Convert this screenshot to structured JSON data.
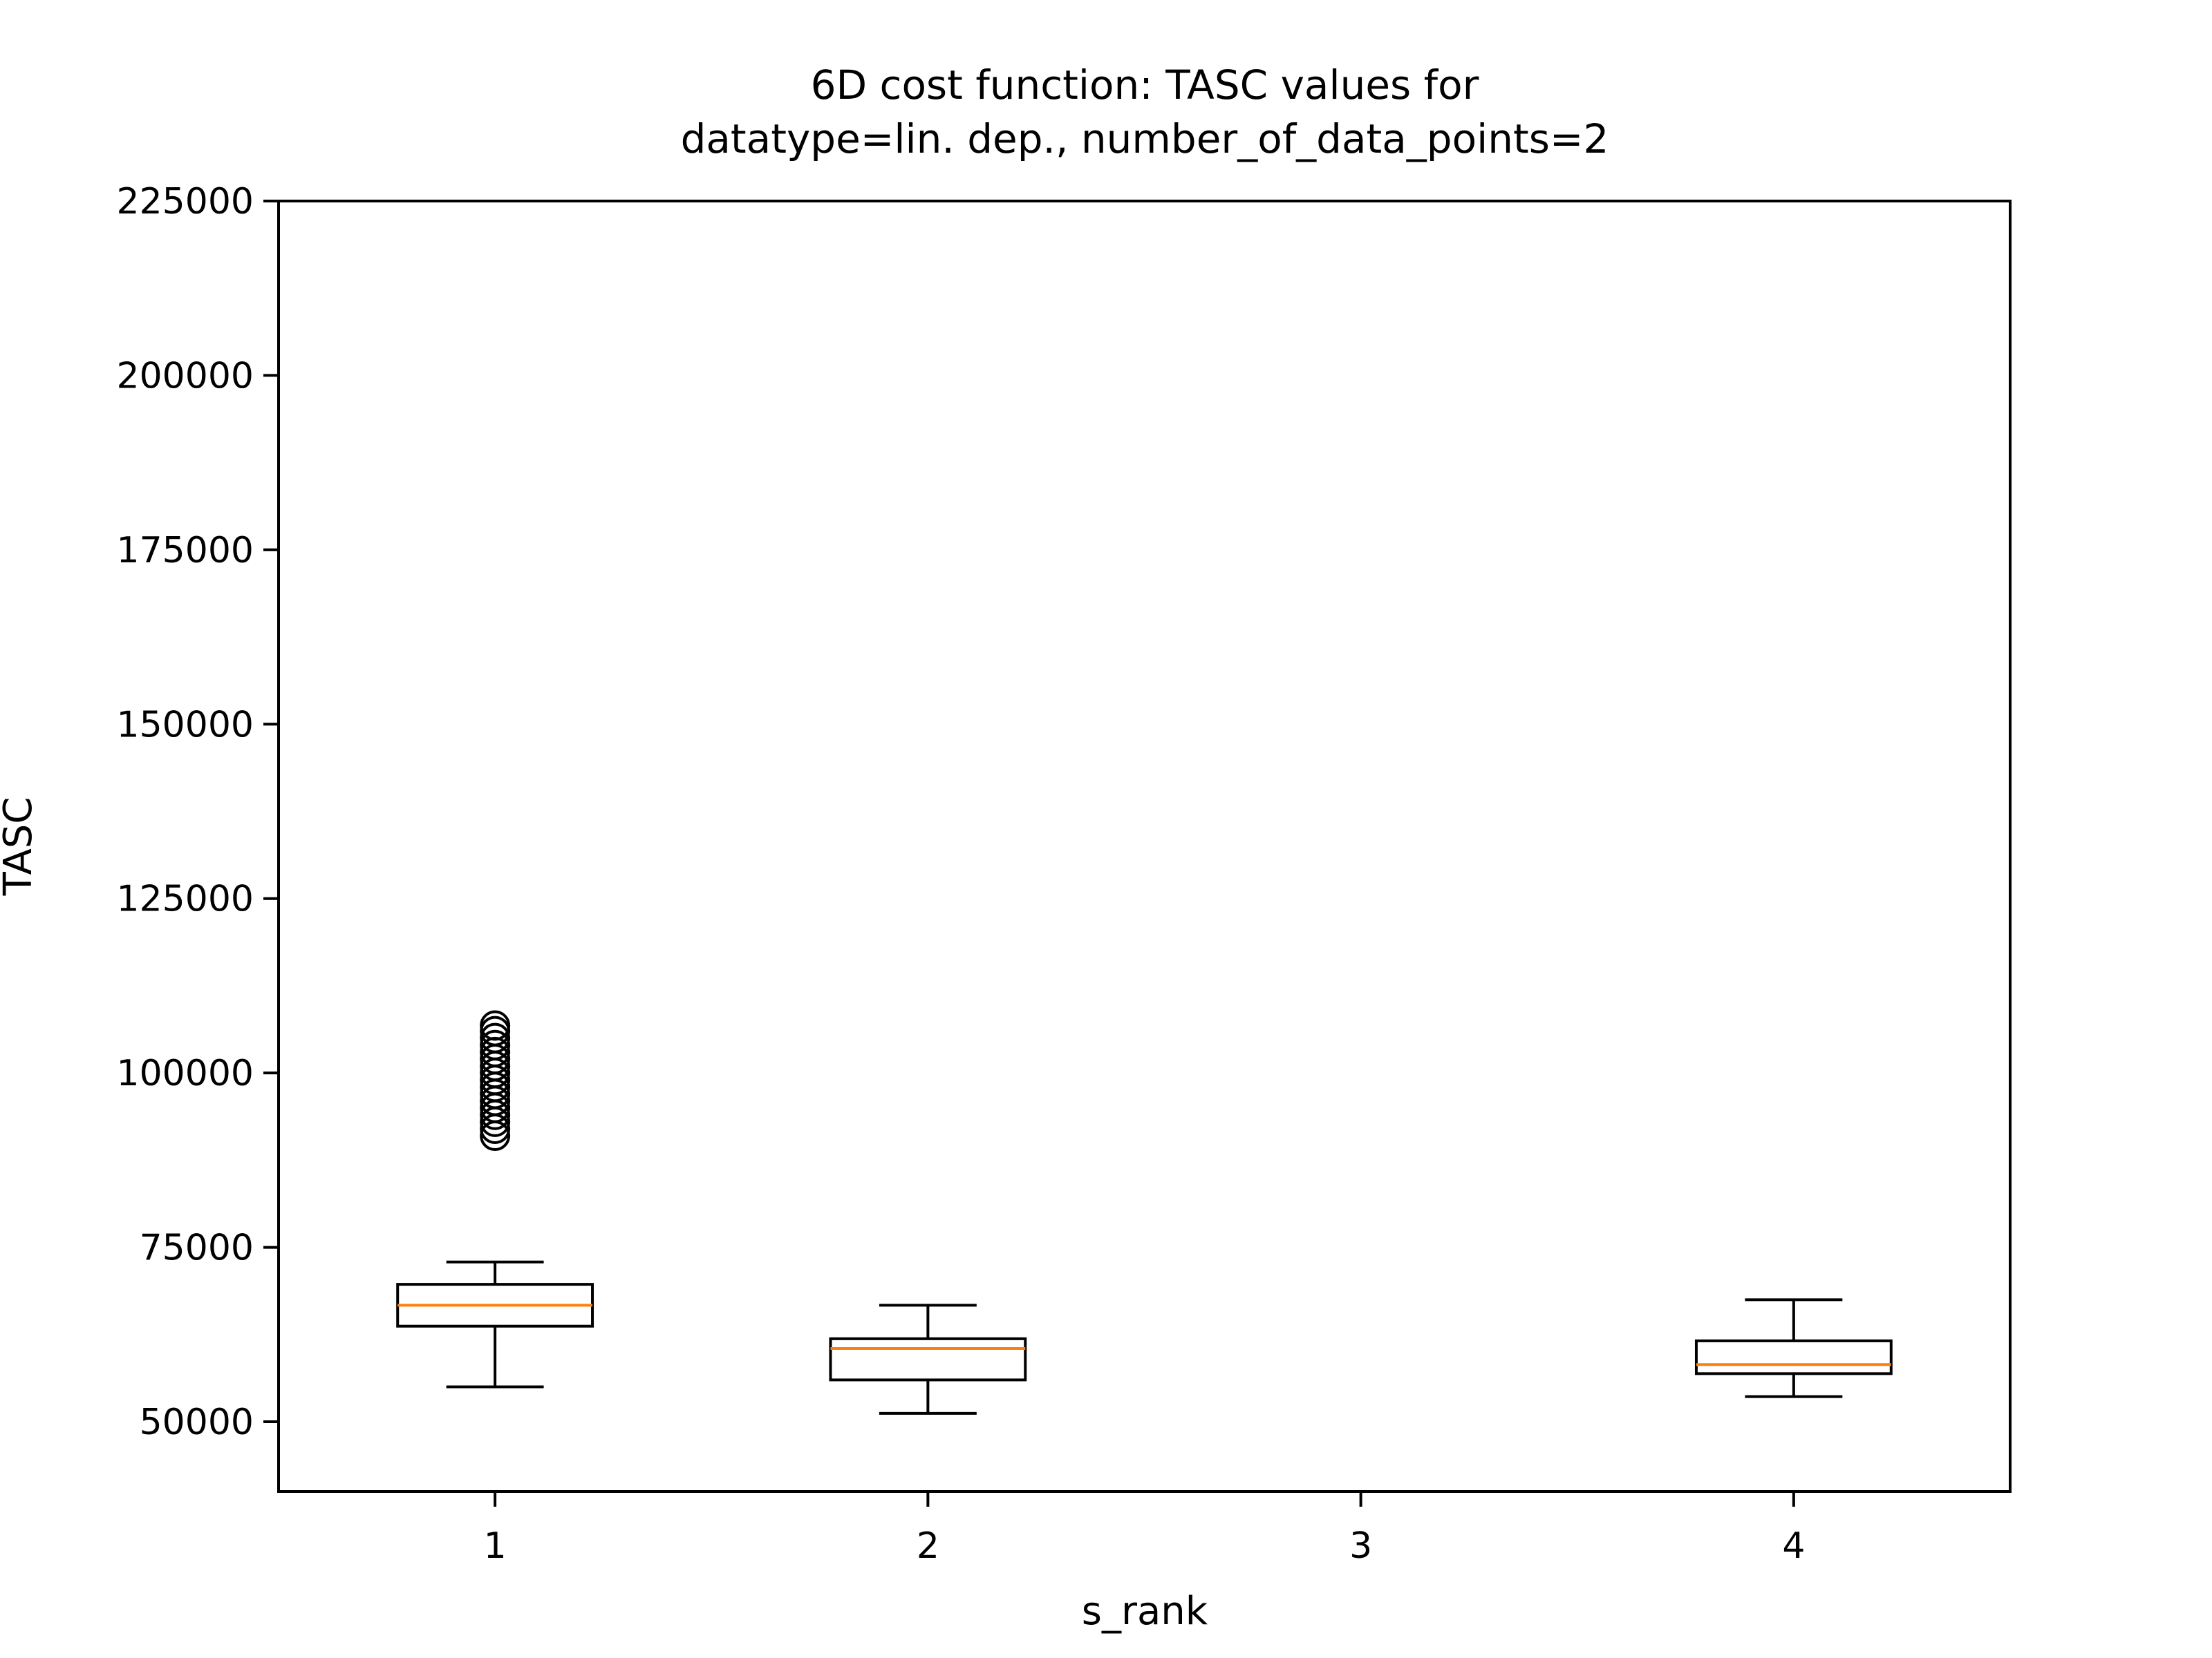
{
  "chart_data": {
    "type": "box",
    "title": "6D cost function: TASC values for",
    "subtitle": "datatype=lin. dep., number_of_data_points=2",
    "xlabel": "s_rank",
    "ylabel": "TASC",
    "categories": [
      "1",
      "2",
      "3",
      "4"
    ],
    "xlim": [
      0.5,
      4.5
    ],
    "ylim": [
      40000,
      225000
    ],
    "y_ticks": [
      "50000",
      "75000",
      "100000",
      "125000",
      "150000",
      "175000",
      "200000",
      "225000"
    ],
    "boxes": [
      {
        "category": "1",
        "whisker_low": 55000,
        "q1": 63700,
        "median": 66700,
        "q3": 69700,
        "whisker_high": 72900,
        "outliers": [
          91000,
          92000,
          93000,
          94000,
          95000,
          96000,
          97000,
          98000,
          99000,
          100000,
          101000,
          102000,
          103000,
          104000,
          105000,
          106000,
          106800
        ]
      },
      {
        "category": "2",
        "whisker_low": 51200,
        "q1": 56000,
        "median": 60500,
        "q3": 61900,
        "whisker_high": 66700,
        "outliers": []
      },
      {
        "category": "4",
        "whisker_low": 53600,
        "q1": 56900,
        "median": 58200,
        "q3": 61600,
        "whisker_high": 67500,
        "outliers": []
      }
    ],
    "grid": false,
    "legend": "none",
    "colors": {
      "box": "#000000",
      "median": "#ff7f0e",
      "outlier": "#000000"
    }
  }
}
